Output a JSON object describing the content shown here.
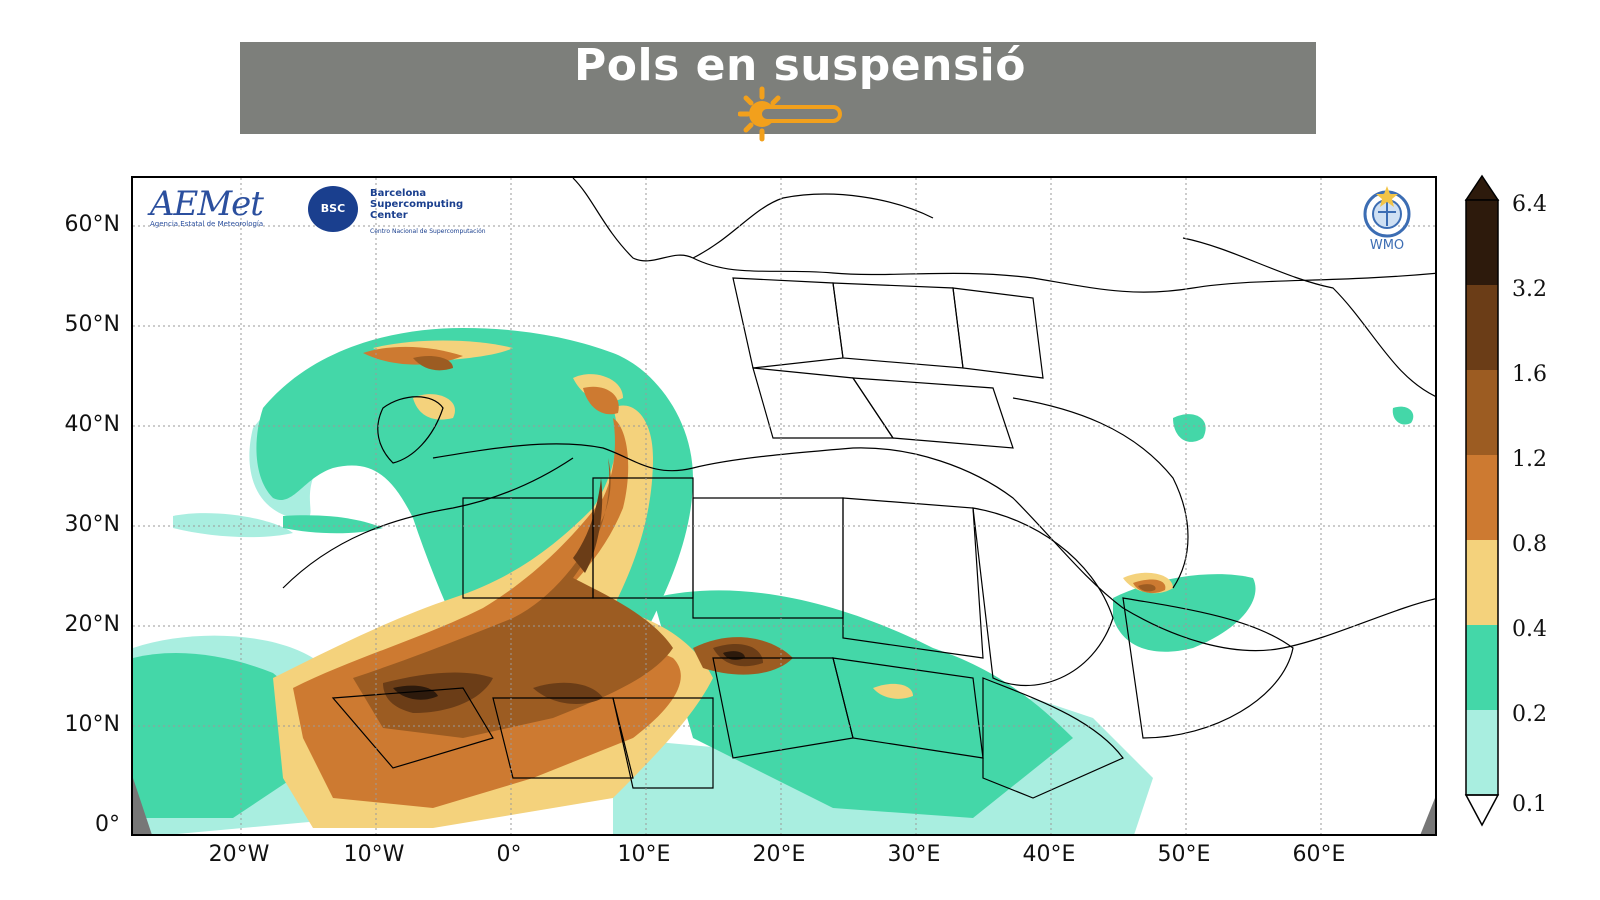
{
  "header": {
    "title": "Pols en suspensió",
    "icon": "sun-behind-bar-icon",
    "bar_color": "#7d7f7b",
    "icon_color": "#f2a01c"
  },
  "map": {
    "lat_labels": [
      "60°N",
      "50°N",
      "40°N",
      "30°N",
      "20°N",
      "10°N",
      "0°"
    ],
    "lon_labels": [
      "20°W",
      "10°W",
      "0°",
      "10°E",
      "20°E",
      "30°E",
      "40°E",
      "50°E",
      "60°E"
    ],
    "logos": {
      "aemet": "AEMet",
      "aemet_sub": "Agencia Estatal de Meteorología",
      "bsc_badge": "BSC",
      "bsc_text": "Barcelona Supercomputing Center",
      "bsc_sub": "Centro Nacional de Supercomputación",
      "wmo": "WMO"
    }
  },
  "colorbar": {
    "labels": [
      "6.4",
      "3.2",
      "1.6",
      "1.2",
      "0.8",
      "0.4",
      "0.2",
      "0.1"
    ],
    "colors": [
      "#2d1a0c",
      "#6b3d17",
      "#9c5c22",
      "#cd7a31",
      "#f4d27c",
      "#44d7a8",
      "#a9eee0"
    ],
    "unit_levels": [
      0.1,
      0.2,
      0.4,
      0.8,
      1.2,
      1.6,
      3.2,
      6.4
    ]
  }
}
